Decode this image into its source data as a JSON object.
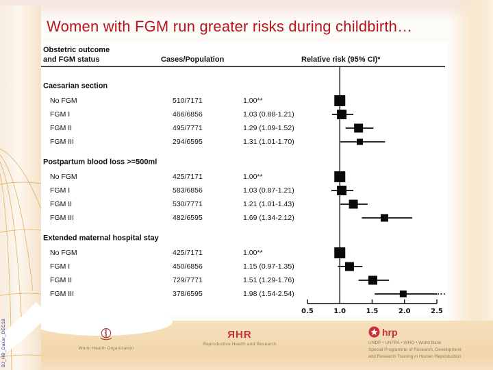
{
  "slide": {
    "title": "Women with FGM run greater risks during childbirth…",
    "side_label": "BJ_HB_Dakar_DEC18"
  },
  "colors": {
    "title_red": "#b3161d",
    "logo_red": "#c5303c",
    "footer_tan": "#f4dbb3",
    "band_orange": "#dfa348"
  },
  "chart_data": {
    "type": "forest",
    "title": "",
    "col_headers": {
      "outcome_line1": "Obstetric outcome",
      "outcome_line2": "and FGM status",
      "cases": "Cases/Population",
      "rr": "Relative risk (95% CI)*"
    },
    "axis": {
      "min": 0.5,
      "max": 2.5,
      "ref_line": 1.0,
      "ticks": [
        0.5,
        1.0,
        1.5,
        2.0,
        2.5
      ]
    },
    "groups": [
      {
        "label": "Caesarian section",
        "rows": [
          {
            "label": "No FGM",
            "cases": "510/7171",
            "rr_text": "1.00**",
            "rr": 1.0,
            "lo": null,
            "hi": null,
            "size": 16
          },
          {
            "label": "FGM I",
            "cases": "466/6856",
            "rr_text": "1.03 (0.88-1.21)",
            "rr": 1.03,
            "lo": 0.88,
            "hi": 1.21,
            "size": 14
          },
          {
            "label": "FGM II",
            "cases": "495/7771",
            "rr_text": "1.29 (1.09-1.52)",
            "rr": 1.29,
            "lo": 1.09,
            "hi": 1.52,
            "size": 13
          },
          {
            "label": "FGM III",
            "cases": "294/6595",
            "rr_text": "1.31 (1.01-1.70)",
            "rr": 1.31,
            "lo": 1.01,
            "hi": 1.7,
            "size": 9
          }
        ]
      },
      {
        "label": "Postpartum blood loss >=500ml",
        "rows": [
          {
            "label": "No FGM",
            "cases": "425/7171",
            "rr_text": "1.00**",
            "rr": 1.0,
            "lo": null,
            "hi": null,
            "size": 16
          },
          {
            "label": "FGM I",
            "cases": "583/6856",
            "rr_text": "1.03 (0.87-1.21)",
            "rr": 1.03,
            "lo": 0.87,
            "hi": 1.21,
            "size": 14
          },
          {
            "label": "FGM II",
            "cases": "530/7771",
            "rr_text": "1.21 (1.01-1.43)",
            "rr": 1.21,
            "lo": 1.01,
            "hi": 1.43,
            "size": 13
          },
          {
            "label": "FGM III",
            "cases": "482/6595",
            "rr_text": "1.69 (1.34-2.12)",
            "rr": 1.69,
            "lo": 1.34,
            "hi": 2.12,
            "size": 11
          }
        ]
      },
      {
        "label": "Extended maternal hospital stay",
        "rows": [
          {
            "label": "No FGM",
            "cases": "425/7171",
            "rr_text": "1.00**",
            "rr": 1.0,
            "lo": null,
            "hi": null,
            "size": 16
          },
          {
            "label": "FGM I",
            "cases": "450/6856",
            "rr_text": "1.15 (0.97-1.35)",
            "rr": 1.15,
            "lo": 0.97,
            "hi": 1.35,
            "size": 13
          },
          {
            "label": "FGM II",
            "cases": "729/7771",
            "rr_text": "1.51 (1.29-1.76)",
            "rr": 1.51,
            "lo": 1.29,
            "hi": 1.76,
            "size": 13
          },
          {
            "label": "FGM III",
            "cases": "378/6595",
            "rr_text": "1.98 (1.54-2.54)",
            "rr": 1.98,
            "lo": 1.54,
            "hi": 2.54,
            "size": 10
          }
        ]
      }
    ]
  },
  "footer": {
    "who": {
      "label": "World Health Organization"
    },
    "rhr": {
      "logo_text": "ЯHR",
      "label": "Reproductive Health and Research"
    },
    "hrp": {
      "logo_text": "hrp",
      "lines": [
        "UNDP • UNFPA • WHO • World Bank",
        "Special Programme of Research, Development",
        "and Research Training in Human Reproduction"
      ]
    }
  }
}
